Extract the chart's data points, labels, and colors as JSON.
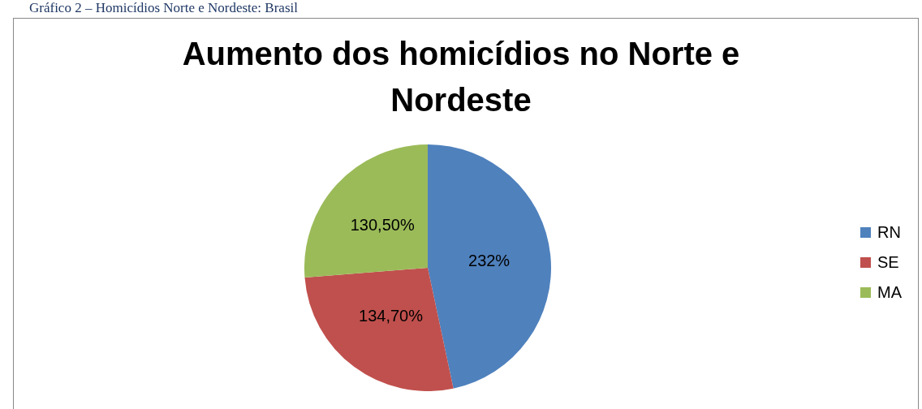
{
  "chart_data": {
    "type": "pie",
    "title": "Aumento dos homicídios no Norte e Nordeste",
    "annotations": [
      "Gráfico 2 – Homicídios Norte e Nordeste: Brasil"
    ],
    "categories": [
      "RN",
      "SE",
      "MA"
    ],
    "values": [
      232,
      134.7,
      130.5
    ],
    "value_labels": [
      "232%",
      "134,70%",
      "130,50%"
    ],
    "colors": [
      "#4f81bd",
      "#c0504d",
      "#9bbb59"
    ],
    "legend": "right"
  }
}
